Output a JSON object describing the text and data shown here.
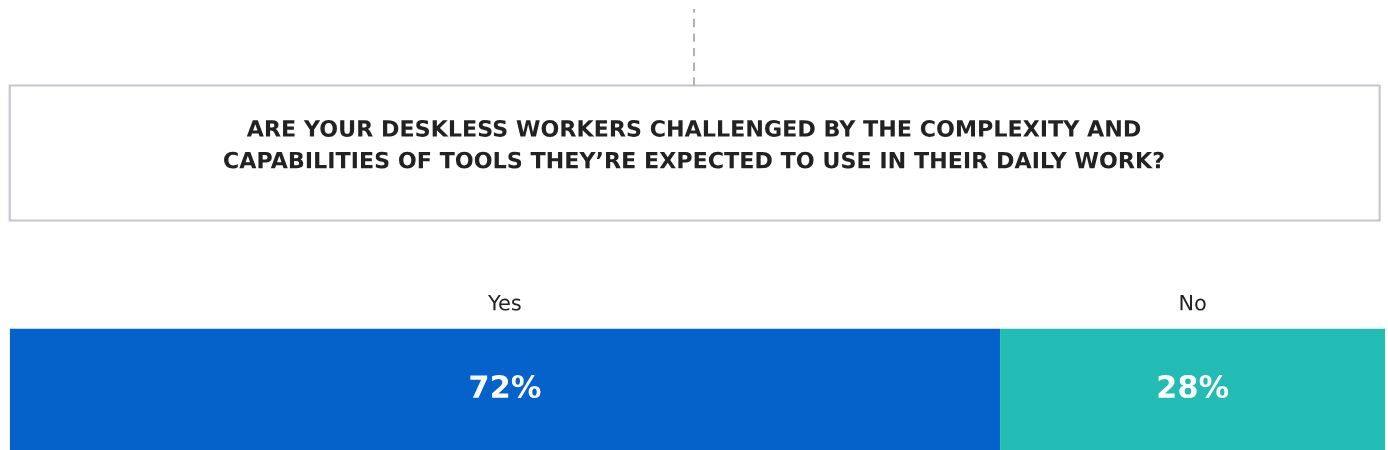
{
  "chart_data": {
    "type": "bar",
    "orientation": "horizontal",
    "stacked": true,
    "title": "ARE YOUR DESKLESS WORKERS CHALLENGED BY THE COMPLEXITY AND\nCAPABILITIES OF TOOLS THEY’RE EXPECTED TO USE IN THEIR DAILY WORK?",
    "categories": [
      null
    ],
    "series": [
      {
        "name": "Yes",
        "color": "#0562ca",
        "values": [
          72
        ],
        "value_labels": [
          "72%"
        ]
      },
      {
        "name": "No",
        "color": "#22bcb4",
        "values": [
          28
        ],
        "value_labels": [
          "28%"
        ]
      }
    ],
    "xlim": [
      0,
      100
    ],
    "tick_labels": false,
    "legend": false
  }
}
